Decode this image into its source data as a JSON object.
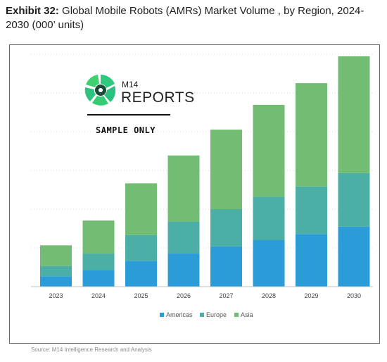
{
  "title": {
    "prefix": "Exhibit 32:",
    "text": " Global Mobile Robots (AMRs) Market Volume , by Region, 2024-2030 (000’ units)"
  },
  "watermark": {
    "brand_top": "M14",
    "brand_bottom": "REPORTS",
    "caption": "SAMPLE ONLY"
  },
  "source": "Source: M14 Intelligence Research and Analysis",
  "colors": {
    "americas": "#2B9CD8",
    "europe": "#4BAFA6",
    "asia": "#72BC74"
  },
  "chart_data": {
    "type": "bar",
    "stacked": true,
    "categories": [
      "2023",
      "2024",
      "2025",
      "2026",
      "2027",
      "2028",
      "2029",
      "2030"
    ],
    "series": [
      {
        "name": "Americas",
        "values": [
          5,
          8,
          12.5,
          16,
          19.5,
          22.5,
          25.5,
          29
        ]
      },
      {
        "name": "Europe",
        "values": [
          5,
          8,
          12.5,
          15.5,
          18,
          21,
          23,
          26
        ]
      },
      {
        "name": "Asia",
        "values": [
          10,
          16,
          25,
          32,
          38.5,
          44.5,
          50,
          56.5
        ]
      }
    ],
    "ylim": [
      0,
      112.5
    ],
    "grid": true,
    "legend": "bottom"
  }
}
